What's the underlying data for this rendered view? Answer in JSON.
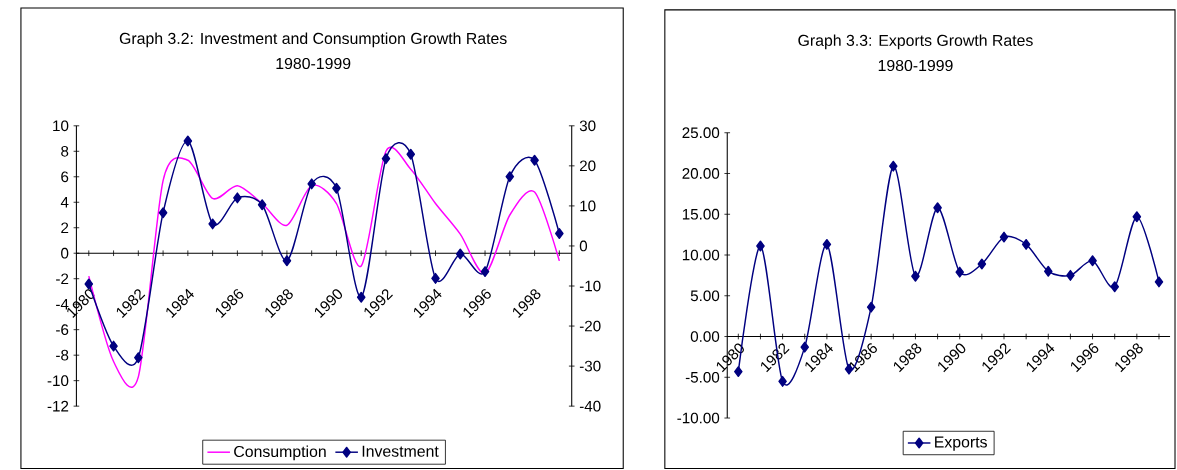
{
  "chart_data": [
    {
      "type": "line",
      "title": "Graph 3.2: Investment and Consumption Growth Rates",
      "subtitle": "1980-1999",
      "categories": [
        "1980",
        null,
        "1982",
        null,
        "1984",
        null,
        "1986",
        null,
        "1988",
        null,
        "1990",
        null,
        "1992",
        null,
        "1994",
        null,
        "1996",
        null,
        "1998",
        null
      ],
      "series": [
        {
          "name": "Consumption",
          "color": "#ff00ff",
          "marker": "none",
          "values": [
            -1.8,
            -8.5,
            -9.7,
            5.7,
            7.3,
            4.3,
            5.3,
            3.9,
            2.2,
            5.3,
            3.9,
            -1.0,
            8.0,
            6.6,
            3.9,
            1.5,
            -1.6,
            3.0,
            4.8,
            -0.6
          ]
        },
        {
          "name": "Investment",
          "color": "#000080",
          "marker": "diamond",
          "axis": "y2",
          "values": [
            -9.5,
            -25.0,
            -27.9,
            8.3,
            26.2,
            5.5,
            12.0,
            10.3,
            -3.7,
            15.5,
            14.4,
            -12.8,
            21.8,
            22.9,
            -8.1,
            -2.0,
            -6.4,
            17.3,
            21.4,
            3.1
          ]
        }
      ],
      "ylim": [
        -12,
        10
      ],
      "yticks": [
        -12,
        -10,
        -8,
        -6,
        -4,
        -2,
        0,
        2,
        4,
        6,
        8,
        10
      ],
      "y2lim": [
        -40,
        30
      ],
      "y2ticks": [
        -40,
        -30,
        -20,
        -10,
        0,
        10,
        20,
        30
      ],
      "legend": "bottom"
    },
    {
      "type": "line",
      "title": "Graph 3.3: Exports Growth Rates",
      "subtitle": "1980-1999",
      "categories": [
        "1980",
        null,
        "1982",
        null,
        "1984",
        null,
        "1986",
        null,
        "1988",
        null,
        "1990",
        null,
        "1992",
        null,
        "1994",
        null,
        "1996",
        null,
        "1998",
        null
      ],
      "series": [
        {
          "name": "Exports",
          "color": "#000080",
          "marker": "diamond",
          "values": [
            -4.3,
            11.1,
            -5.5,
            -1.3,
            11.3,
            -4.0,
            3.6,
            20.9,
            7.4,
            15.8,
            7.9,
            8.9,
            12.2,
            11.3,
            8.0,
            7.5,
            9.3,
            6.1,
            14.7,
            6.7
          ]
        }
      ],
      "ylim": [
        -10,
        25
      ],
      "yticks": [
        {
          "value": -10,
          "label": "-10.00"
        },
        {
          "value": -5,
          "label": "-5.00"
        },
        {
          "value": 0,
          "label": "0.00"
        },
        {
          "value": 5,
          "label": "5.00"
        },
        {
          "value": 10,
          "label": "10.00"
        },
        {
          "value": 15,
          "label": "15.00"
        },
        {
          "value": 20,
          "label": "20.00"
        },
        {
          "value": 25,
          "label": "25.00"
        }
      ],
      "legend": "bottom"
    }
  ]
}
